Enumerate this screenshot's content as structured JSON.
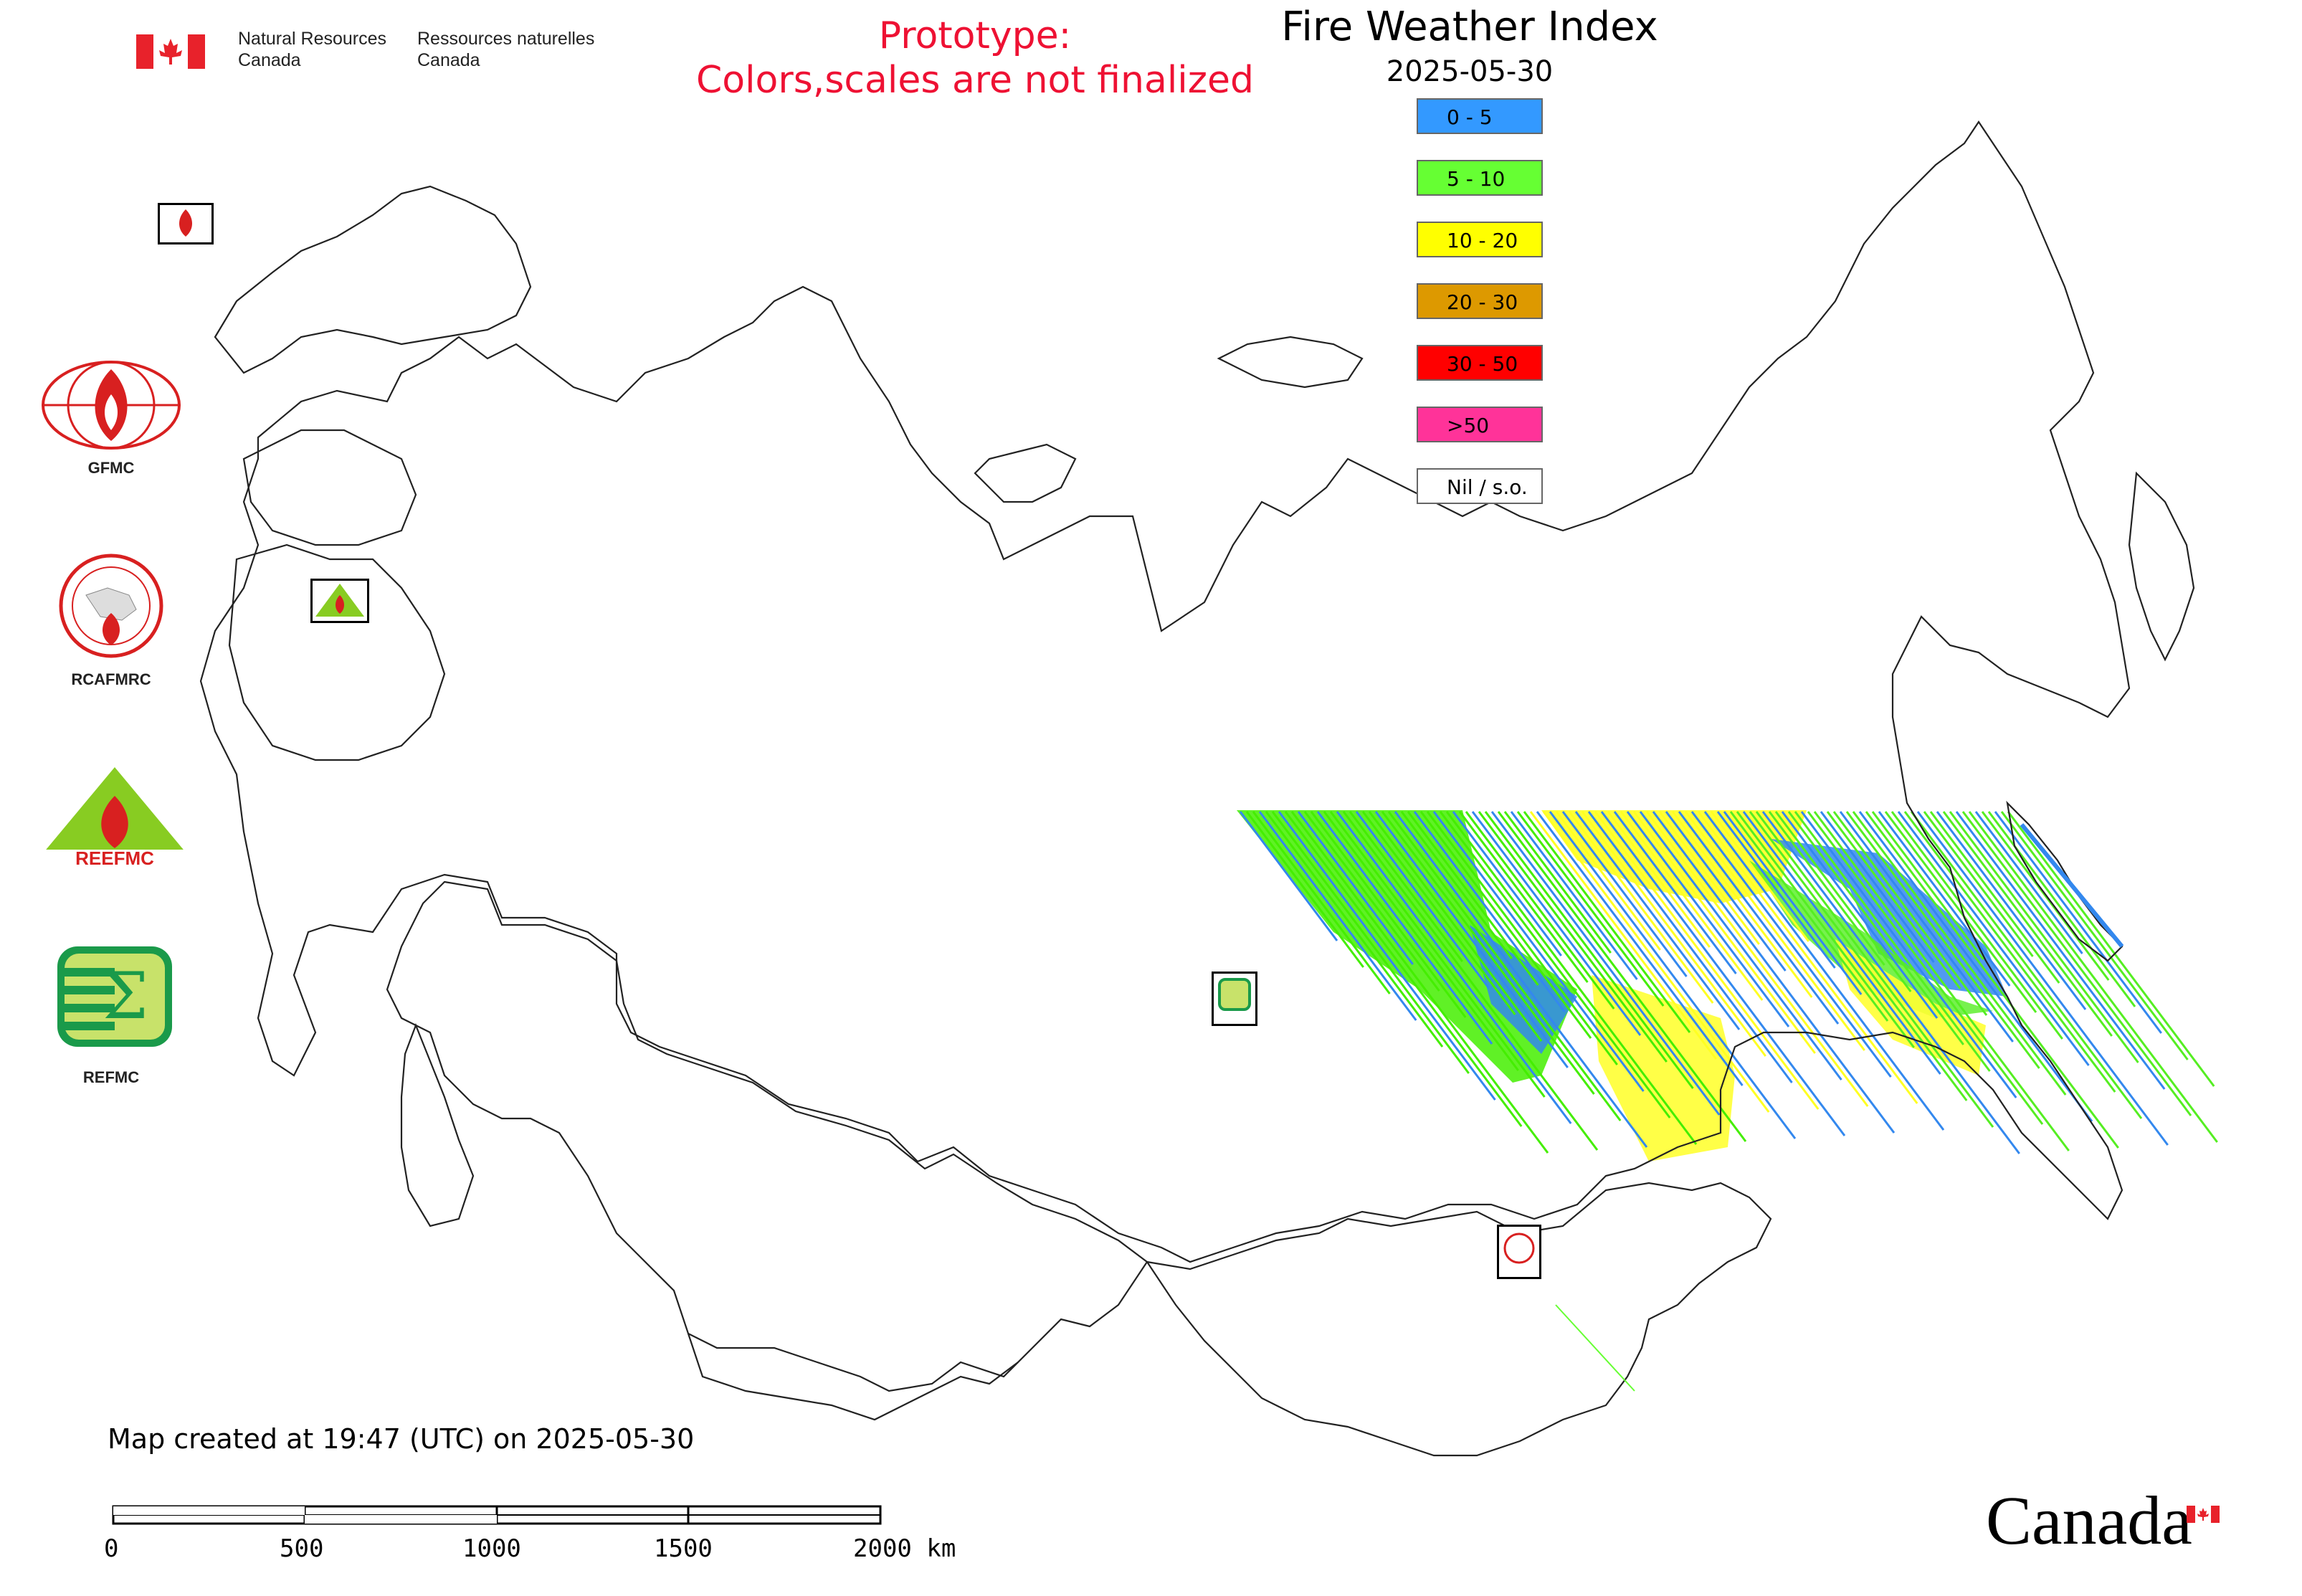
{
  "header": {
    "org_en_line1": "Natural Resources",
    "org_en_line2": "Canada",
    "org_fr_line1": "Ressources naturelles",
    "org_fr_line2": "Canada"
  },
  "notice": {
    "line1": "Prototype:",
    "line2": "Colors,scales are not finalized",
    "color": "#ee1133"
  },
  "map": {
    "title": "Fire Weather Index",
    "date": "2025-05-30",
    "created_text": "Map created at 19:47 (UTC) on 2025-05-30"
  },
  "legend": [
    {
      "label": "0 - 5",
      "color": "#3399ff"
    },
    {
      "label": "5 - 10",
      "color": "#66ff33"
    },
    {
      "label": "10 - 20",
      "color": "#ffff00"
    },
    {
      "label": "20 - 30",
      "color": "#dd9900"
    },
    {
      "label": "30 - 50",
      "color": "#ff0000"
    },
    {
      "label": ">50",
      "color": "#ff3399"
    },
    {
      "label": "Nil / s.o.",
      "color": "#ffffff"
    }
  ],
  "side_logos": [
    {
      "label": "GFMC",
      "icon": "gfmc-logo-icon"
    },
    {
      "label": "RCAFMRC",
      "icon": "rcafmrc-logo-icon"
    },
    {
      "label": "",
      "icon": "reefmc-logo-icon",
      "wordmark": "REEFMC"
    },
    {
      "label": "REFMC",
      "icon": "refmc-logo-icon"
    }
  ],
  "scale_bar": {
    "ticks": [
      "0",
      "500",
      "1000",
      "1500",
      "2000 km"
    ]
  },
  "footer": {
    "wordmark": "Canada"
  }
}
